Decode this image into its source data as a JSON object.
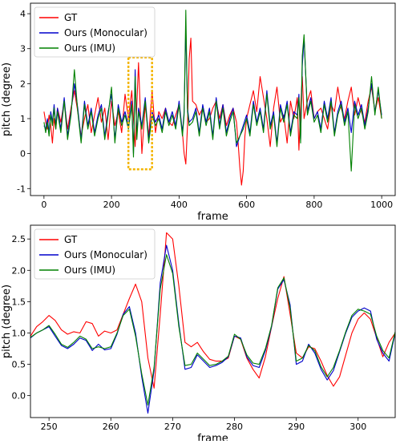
{
  "chart_data": [
    {
      "type": "line",
      "xlabel": "frame",
      "ylabel": "pitch (degree)",
      "xlim": [
        -40,
        1040
      ],
      "ylim": [
        -1.2,
        4.3
      ],
      "xticks": [
        0,
        200,
        400,
        600,
        800,
        1000
      ],
      "yticks": [
        -1,
        0,
        1,
        2,
        3,
        4
      ],
      "legend": "top-left",
      "highlight_box": {
        "x_range": [
          250,
          320
        ],
        "y_range": [
          -0.45,
          2.75
        ],
        "color": "#f4b400"
      },
      "series": [
        {
          "name": "GT",
          "color": "#ff0000",
          "x": [
            0,
            5,
            10,
            15,
            20,
            25,
            30,
            35,
            40,
            50,
            60,
            70,
            80,
            90,
            100,
            110,
            120,
            130,
            140,
            150,
            160,
            170,
            180,
            190,
            200,
            210,
            220,
            230,
            240,
            250,
            260,
            270,
            280,
            290,
            300,
            310,
            320,
            330,
            340,
            350,
            360,
            370,
            380,
            390,
            400,
            405,
            410,
            415,
            420,
            425,
            430,
            435,
            440,
            450,
            460,
            470,
            480,
            490,
            500,
            510,
            520,
            530,
            540,
            550,
            560,
            570,
            575,
            580,
            585,
            590,
            595,
            600,
            610,
            620,
            630,
            640,
            650,
            660,
            670,
            680,
            690,
            700,
            710,
            720,
            730,
            740,
            750,
            755,
            760,
            765,
            770,
            780,
            790,
            800,
            810,
            820,
            830,
            840,
            850,
            860,
            870,
            880,
            890,
            900,
            910,
            920,
            930,
            940,
            950,
            960,
            970,
            980,
            990,
            1000
          ],
          "values": [
            1.2,
            0.9,
            0.7,
            1.1,
            0.8,
            0.3,
            1.0,
            0.7,
            1.3,
            0.9,
            1.5,
            0.7,
            1.3,
            1.8,
            1.2,
            0.5,
            1.0,
            1.4,
            0.6,
            1.1,
            1.6,
            0.9,
            1.3,
            0.4,
            1.5,
            0.8,
            1.2,
            0.6,
            1.7,
            1.0,
            1.8,
            0.2,
            2.6,
            0.0,
            1.4,
            0.5,
            1.8,
            0.6,
            1.2,
            1.0,
            1.3,
            0.9,
            0.8,
            1.1,
            1.4,
            1.0,
            0.6,
            0.0,
            -0.3,
            0.8,
            2.7,
            3.3,
            1.5,
            1.4,
            1.1,
            1.3,
            0.9,
            1.0,
            1.3,
            1.5,
            1.0,
            1.4,
            0.8,
            1.1,
            1.3,
            0.9,
            0.3,
            -0.4,
            -0.9,
            -0.5,
            0.5,
            1.0,
            1.4,
            1.8,
            1.2,
            2.2,
            1.6,
            1.0,
            0.2,
            1.3,
            1.9,
            0.9,
            1.1,
            0.3,
            1.5,
            1.0,
            1.6,
            0.1,
            1.3,
            2.2,
            1.0,
            1.5,
            1.8,
            1.0,
            1.2,
            1.3,
            1.0,
            0.7,
            1.4,
            1.2,
            1.9,
            1.3,
            1.0,
            1.5,
            1.9,
            1.1,
            1.6,
            1.2,
            0.9,
            1.5,
            1.9,
            1.2,
            1.6,
            1.0
          ]
        },
        {
          "name": "Ours (Monocular)",
          "color": "#0000cc",
          "x": [
            0,
            5,
            10,
            15,
            20,
            25,
            30,
            35,
            40,
            50,
            60,
            70,
            80,
            90,
            100,
            110,
            120,
            130,
            140,
            150,
            160,
            170,
            180,
            190,
            200,
            210,
            220,
            230,
            240,
            250,
            260,
            265,
            270,
            275,
            280,
            290,
            300,
            310,
            320,
            330,
            340,
            350,
            360,
            370,
            380,
            390,
            400,
            410,
            415,
            420,
            425,
            430,
            440,
            450,
            460,
            470,
            480,
            490,
            500,
            510,
            520,
            530,
            540,
            550,
            560,
            570,
            580,
            590,
            600,
            610,
            620,
            630,
            640,
            650,
            660,
            670,
            680,
            690,
            700,
            710,
            720,
            730,
            740,
            750,
            755,
            760,
            765,
            770,
            780,
            790,
            800,
            810,
            820,
            830,
            840,
            850,
            860,
            870,
            880,
            890,
            900,
            910,
            920,
            930,
            940,
            950,
            960,
            970,
            980,
            990,
            1000
          ],
          "values": [
            0.8,
            0.7,
            1.0,
            0.6,
            1.2,
            0.9,
            1.4,
            0.8,
            1.3,
            0.7,
            1.6,
            0.5,
            1.2,
            2.0,
            1.3,
            0.4,
            1.5,
            0.8,
            1.3,
            0.6,
            1.1,
            1.4,
            0.5,
            1.2,
            1.7,
            0.4,
            1.4,
            0.9,
            1.2,
            0.8,
            1.5,
            0.0,
            2.4,
            0.5,
            1.3,
            0.8,
            1.6,
            0.4,
            1.2,
            0.9,
            1.1,
            0.7,
            1.3,
            0.9,
            1.2,
            0.8,
            1.5,
            0.6,
            1.2,
            3.6,
            1.3,
            0.9,
            1.0,
            1.3,
            0.6,
            1.4,
            0.9,
            1.3,
            0.5,
            1.6,
            0.8,
            1.4,
            0.6,
            1.0,
            1.3,
            0.2,
            0.5,
            0.8,
            1.1,
            0.6,
            1.5,
            0.9,
            1.3,
            0.7,
            1.8,
            0.8,
            1.2,
            0.3,
            1.4,
            1.0,
            1.5,
            0.6,
            1.2,
            1.1,
            1.7,
            0.4,
            2.5,
            3.3,
            1.2,
            1.6,
            1.0,
            1.2,
            0.7,
            1.5,
            1.0,
            1.6,
            0.6,
            1.2,
            1.5,
            0.9,
            1.3,
            0.6,
            1.5,
            1.1,
            1.4,
            0.8,
            1.3,
            2.0,
            1.2,
            1.8,
            1.1
          ]
        },
        {
          "name": "Ours (IMU)",
          "color": "#008000",
          "x": [
            0,
            5,
            10,
            15,
            20,
            25,
            30,
            35,
            40,
            50,
            60,
            70,
            80,
            90,
            100,
            110,
            120,
            130,
            140,
            150,
            160,
            170,
            180,
            190,
            200,
            210,
            220,
            230,
            240,
            250,
            260,
            265,
            270,
            275,
            280,
            290,
            300,
            310,
            320,
            330,
            340,
            350,
            360,
            370,
            380,
            390,
            400,
            410,
            415,
            420,
            425,
            430,
            440,
            450,
            460,
            470,
            480,
            490,
            500,
            510,
            520,
            530,
            540,
            550,
            560,
            570,
            580,
            590,
            600,
            610,
            620,
            630,
            640,
            650,
            660,
            670,
            680,
            690,
            700,
            710,
            720,
            730,
            740,
            750,
            755,
            760,
            765,
            770,
            780,
            790,
            800,
            810,
            820,
            830,
            840,
            850,
            860,
            870,
            880,
            890,
            900,
            910,
            920,
            930,
            940,
            950,
            960,
            970,
            980,
            990,
            1000
          ],
          "values": [
            0.9,
            0.6,
            0.9,
            0.5,
            1.1,
            0.8,
            1.3,
            0.7,
            1.2,
            0.6,
            1.5,
            0.4,
            1.1,
            2.4,
            1.2,
            0.3,
            1.4,
            0.7,
            1.2,
            0.5,
            1.0,
            1.3,
            0.4,
            1.1,
            1.9,
            0.3,
            1.3,
            0.8,
            1.1,
            0.7,
            1.4,
            -0.1,
            2.2,
            0.4,
            1.2,
            0.7,
            1.5,
            0.3,
            1.1,
            0.8,
            1.0,
            0.6,
            1.2,
            0.8,
            1.1,
            0.7,
            1.4,
            0.5,
            1.1,
            4.1,
            1.2,
            0.8,
            0.9,
            1.2,
            0.5,
            1.3,
            0.8,
            1.2,
            0.4,
            1.5,
            0.7,
            1.3,
            0.5,
            0.9,
            1.2,
            0.3,
            0.5,
            0.7,
            1.0,
            0.5,
            1.4,
            0.8,
            1.2,
            0.6,
            1.7,
            0.7,
            1.1,
            0.2,
            1.3,
            0.9,
            1.4,
            0.5,
            1.1,
            1.0,
            1.6,
            0.3,
            2.8,
            3.4,
            1.1,
            1.5,
            0.9,
            1.1,
            0.6,
            1.4,
            0.9,
            1.5,
            0.5,
            1.1,
            1.4,
            0.8,
            1.2,
            -0.5,
            1.4,
            1.0,
            1.3,
            0.7,
            1.2,
            2.2,
            1.1,
            1.9,
            1.0
          ]
        }
      ]
    },
    {
      "type": "line",
      "xlabel": "frame",
      "ylabel": "pitch (degree)",
      "xlim": [
        247,
        306
      ],
      "ylim": [
        -0.35,
        2.72
      ],
      "xticks": [
        250,
        260,
        270,
        280,
        290,
        300
      ],
      "yticks": [
        0.0,
        0.5,
        1.0,
        1.5,
        2.0,
        2.5
      ],
      "legend": "top-left",
      "series": [
        {
          "name": "GT",
          "color": "#ff0000",
          "x": [
            247,
            248,
            249,
            250,
            251,
            252,
            253,
            254,
            255,
            256,
            257,
            258,
            259,
            260,
            261,
            262,
            263,
            264,
            265,
            266,
            267,
            268,
            269,
            270,
            271,
            272,
            273,
            274,
            275,
            276,
            277,
            278,
            279,
            280,
            281,
            282,
            283,
            284,
            285,
            286,
            287,
            288,
            289,
            290,
            291,
            292,
            293,
            294,
            295,
            296,
            297,
            298,
            299,
            300,
            301,
            302,
            303,
            304,
            305,
            306
          ],
          "values": [
            0.95,
            1.1,
            1.18,
            1.28,
            1.2,
            1.05,
            0.98,
            1.02,
            1.0,
            1.18,
            1.15,
            0.95,
            1.03,
            1.0,
            1.05,
            1.3,
            1.55,
            1.78,
            1.5,
            0.6,
            0.12,
            1.3,
            2.6,
            2.5,
            1.75,
            0.85,
            0.78,
            0.85,
            0.7,
            0.58,
            0.55,
            0.55,
            0.6,
            0.95,
            0.9,
            0.6,
            0.42,
            0.28,
            0.62,
            1.1,
            1.55,
            1.9,
            1.3,
            0.68,
            0.6,
            0.78,
            0.75,
            0.55,
            0.32,
            0.15,
            0.3,
            0.65,
            1.0,
            1.22,
            1.32,
            1.22,
            0.92,
            0.62,
            0.85,
            1.0
          ]
        },
        {
          "name": "Ours (Monocular)",
          "color": "#0000cc",
          "x": [
            247,
            248,
            249,
            250,
            251,
            252,
            253,
            254,
            255,
            256,
            257,
            258,
            259,
            260,
            261,
            262,
            263,
            264,
            265,
            266,
            267,
            268,
            269,
            270,
            271,
            272,
            273,
            274,
            275,
            276,
            277,
            278,
            279,
            280,
            281,
            282,
            283,
            284,
            285,
            286,
            287,
            288,
            289,
            290,
            291,
            292,
            293,
            294,
            295,
            296,
            297,
            298,
            299,
            300,
            301,
            302,
            303,
            304,
            305,
            306
          ],
          "values": [
            0.92,
            1.0,
            1.05,
            1.1,
            0.95,
            0.8,
            0.75,
            0.82,
            0.92,
            0.88,
            0.72,
            0.82,
            0.73,
            0.75,
            0.98,
            1.3,
            1.42,
            1.0,
            0.3,
            -0.28,
            0.4,
            1.8,
            2.4,
            2.0,
            1.15,
            0.42,
            0.45,
            0.65,
            0.55,
            0.45,
            0.48,
            0.53,
            0.62,
            0.95,
            0.92,
            0.62,
            0.48,
            0.45,
            0.72,
            1.1,
            1.7,
            1.85,
            1.45,
            0.5,
            0.55,
            0.82,
            0.68,
            0.42,
            0.25,
            0.4,
            0.7,
            1.0,
            1.25,
            1.35,
            1.4,
            1.35,
            0.9,
            0.68,
            0.55,
            1.0
          ]
        },
        {
          "name": "Ours (IMU)",
          "color": "#008000",
          "x": [
            247,
            248,
            249,
            250,
            251,
            252,
            253,
            254,
            255,
            256,
            257,
            258,
            259,
            260,
            261,
            262,
            263,
            264,
            265,
            266,
            267,
            268,
            269,
            270,
            271,
            272,
            273,
            274,
            275,
            276,
            277,
            278,
            279,
            280,
            281,
            282,
            283,
            284,
            285,
            286,
            287,
            288,
            289,
            290,
            291,
            292,
            293,
            294,
            295,
            296,
            297,
            298,
            299,
            300,
            301,
            302,
            303,
            304,
            305,
            306
          ],
          "values": [
            0.93,
            1.0,
            1.05,
            1.12,
            0.98,
            0.82,
            0.77,
            0.85,
            0.95,
            0.9,
            0.75,
            0.78,
            0.75,
            0.78,
            1.0,
            1.28,
            1.38,
            0.95,
            0.35,
            -0.15,
            0.45,
            1.7,
            2.25,
            1.95,
            1.1,
            0.48,
            0.5,
            0.68,
            0.58,
            0.48,
            0.5,
            0.55,
            0.63,
            0.98,
            0.9,
            0.65,
            0.52,
            0.5,
            0.75,
            1.12,
            1.72,
            1.88,
            1.4,
            0.55,
            0.6,
            0.8,
            0.72,
            0.46,
            0.3,
            0.45,
            0.72,
            1.02,
            1.28,
            1.38,
            1.35,
            1.3,
            0.95,
            0.72,
            0.6,
            1.02
          ]
        }
      ]
    }
  ]
}
